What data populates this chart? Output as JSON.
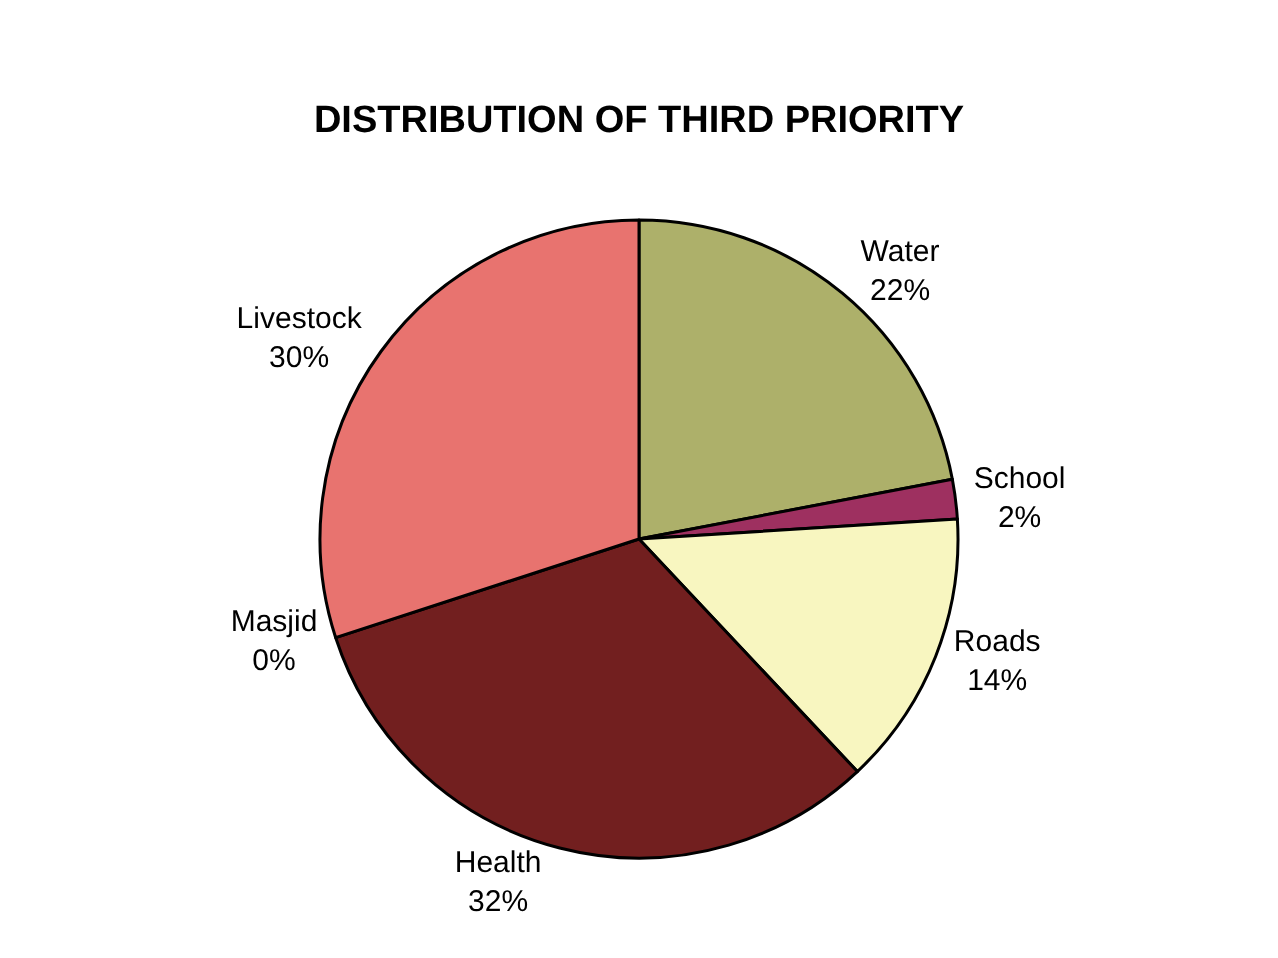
{
  "chart_data": {
    "type": "pie",
    "title": "DISTRIBUTION OF THIRD PRIORITY",
    "categories": [
      "Water",
      "School",
      "Roads",
      "Health",
      "Masjid",
      "Livestock"
    ],
    "values": [
      22,
      2,
      14,
      32,
      0,
      30
    ],
    "value_labels": [
      "22%",
      "2%",
      "14%",
      "32%",
      "0%",
      "30%"
    ],
    "colors": [
      "#adb06a",
      "#9e3060",
      "#f8f6c0",
      "#721f1f",
      "#4a4a8a",
      "#e8736f"
    ],
    "legend": false
  }
}
